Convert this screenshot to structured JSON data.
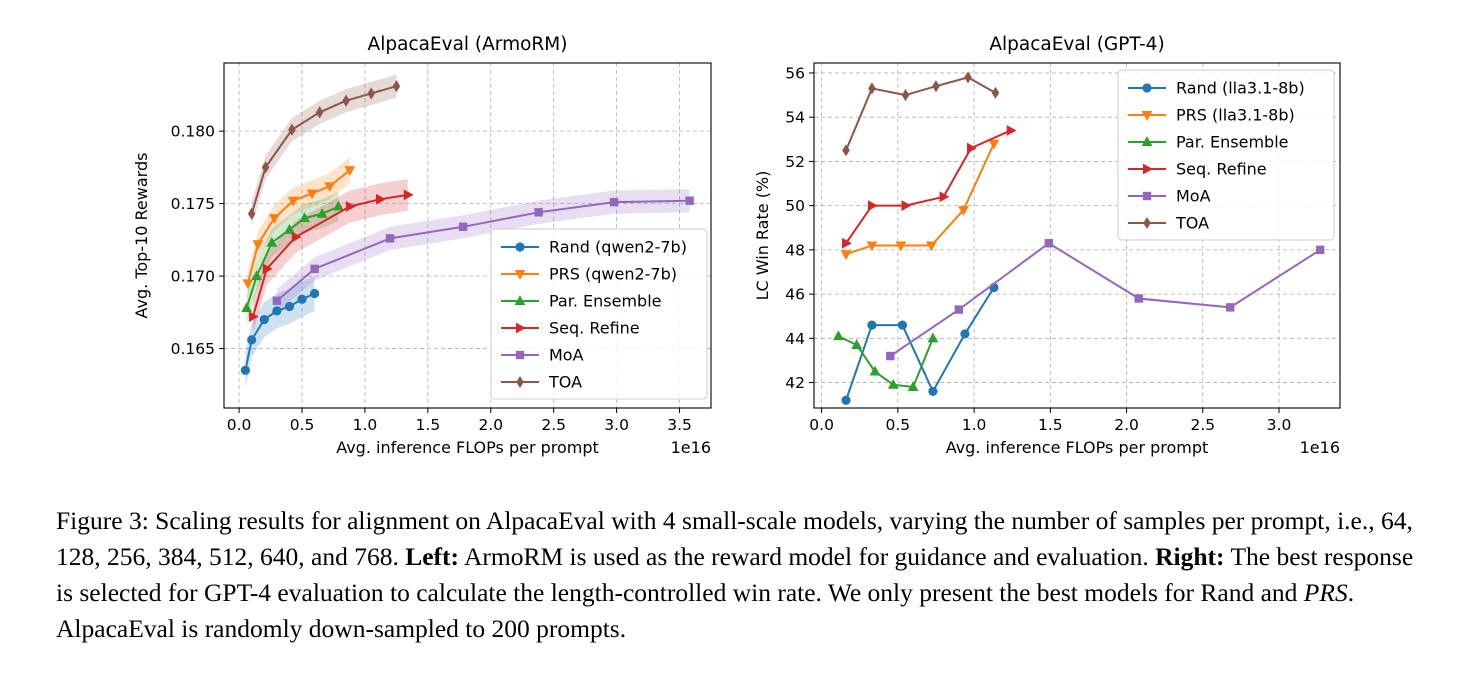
{
  "chart_data": [
    {
      "type": "line",
      "title": "AlpacaEval (ArmoRM)",
      "xlabel": "Avg. inference FLOPs per prompt",
      "ylabel": "Avg. Top-10 Rewards",
      "x_offset_label": "1e16",
      "xlim": [
        -0.12,
        3.75
      ],
      "ylim": [
        0.1609,
        0.1847
      ],
      "xticks": [
        0.0,
        0.5,
        1.0,
        1.5,
        2.0,
        2.5,
        3.0,
        3.5
      ],
      "xtick_labels": [
        "0.0",
        "0.5",
        "1.0",
        "1.5",
        "2.0",
        "2.5",
        "3.0",
        "3.5"
      ],
      "yticks": [
        0.165,
        0.17,
        0.175,
        0.18
      ],
      "ytick_labels": [
        "0.165",
        "0.170",
        "0.175",
        "0.180"
      ],
      "grid": true,
      "legend_position": "lower-right",
      "series": [
        {
          "name": "Rand (qwen2-7b)",
          "color": "#1f77b4",
          "marker": "circle",
          "band": 0.0012,
          "x": [
            0.05,
            0.1,
            0.2,
            0.3,
            0.4,
            0.5,
            0.6
          ],
          "y": [
            0.1635,
            0.1656,
            0.167,
            0.1676,
            0.1679,
            0.1684,
            0.1688
          ]
        },
        {
          "name": "PRS (qwen2-7b)",
          "color": "#ff7f0e",
          "marker": "triangle-down",
          "band": 0.0009,
          "x": [
            0.07,
            0.15,
            0.28,
            0.43,
            0.58,
            0.72,
            0.88
          ],
          "y": [
            0.1695,
            0.1722,
            0.174,
            0.1752,
            0.1757,
            0.1762,
            0.1773
          ]
        },
        {
          "name": "Par. Ensemble",
          "color": "#2ca02c",
          "marker": "triangle-up",
          "band": 0.001,
          "x": [
            0.06,
            0.14,
            0.26,
            0.4,
            0.52,
            0.66,
            0.79
          ],
          "y": [
            0.1678,
            0.17,
            0.1723,
            0.1732,
            0.174,
            0.1743,
            0.1748
          ]
        },
        {
          "name": "Seq. Refine",
          "color": "#d62728",
          "marker": "triangle-right",
          "band": 0.0011,
          "x": [
            0.11,
            0.22,
            0.45,
            0.88,
            1.12,
            1.34
          ],
          "y": [
            0.1672,
            0.1705,
            0.1727,
            0.1748,
            0.1753,
            0.1756
          ]
        },
        {
          "name": "MoA",
          "color": "#9467bd",
          "marker": "square",
          "band": 0.0008,
          "x": [
            0.3,
            0.6,
            1.2,
            1.78,
            2.38,
            2.98,
            3.58
          ],
          "y": [
            0.1683,
            0.1705,
            0.1726,
            0.1734,
            0.1744,
            0.1751,
            0.1752
          ]
        },
        {
          "name": "TOA",
          "color": "#8c564b",
          "marker": "diamond",
          "band": 0.0008,
          "x": [
            0.1,
            0.21,
            0.42,
            0.64,
            0.85,
            1.05,
            1.25
          ],
          "y": [
            0.1743,
            0.1775,
            0.1801,
            0.1813,
            0.1821,
            0.1826,
            0.1831
          ]
        }
      ]
    },
    {
      "type": "line",
      "title": "AlpacaEval (GPT-4)",
      "xlabel": "Avg. inference FLOPs per prompt",
      "ylabel": "LC Win Rate (%)",
      "x_offset_label": "1e16",
      "xlim": [
        -0.05,
        3.4
      ],
      "ylim": [
        40.85,
        56.45
      ],
      "xticks": [
        0.0,
        0.5,
        1.0,
        1.5,
        2.0,
        2.5,
        3.0
      ],
      "xtick_labels": [
        "0.0",
        "0.5",
        "1.0",
        "1.5",
        "2.0",
        "2.5",
        "3.0"
      ],
      "yticks": [
        42,
        44,
        46,
        48,
        50,
        52,
        54,
        56
      ],
      "ytick_labels": [
        "42",
        "44",
        "46",
        "48",
        "50",
        "52",
        "54",
        "56"
      ],
      "grid": true,
      "legend_position": "upper-right",
      "series": [
        {
          "name": "Rand (lla3.1-8b)",
          "color": "#1f77b4",
          "marker": "circle",
          "x": [
            0.16,
            0.33,
            0.53,
            0.73,
            0.94,
            1.13
          ],
          "y": [
            41.2,
            44.6,
            44.6,
            41.6,
            44.2,
            46.3
          ]
        },
        {
          "name": "PRS (lla3.1-8b)",
          "color": "#ff7f0e",
          "marker": "triangle-down",
          "x": [
            0.16,
            0.33,
            0.52,
            0.72,
            0.93,
            1.13
          ],
          "y": [
            47.8,
            48.2,
            48.2,
            48.2,
            49.8,
            52.8
          ]
        },
        {
          "name": "Par. Ensemble",
          "color": "#2ca02c",
          "marker": "triangle-up",
          "x": [
            0.11,
            0.23,
            0.35,
            0.47,
            0.6,
            0.73
          ],
          "y": [
            44.1,
            43.7,
            42.5,
            41.9,
            41.8,
            44.0
          ]
        },
        {
          "name": "Seq. Refine",
          "color": "#d62728",
          "marker": "triangle-right",
          "x": [
            0.16,
            0.33,
            0.55,
            0.8,
            0.98,
            1.24
          ],
          "y": [
            48.3,
            50.0,
            50.0,
            50.4,
            52.6,
            53.4
          ]
        },
        {
          "name": "MoA",
          "color": "#9467bd",
          "marker": "square",
          "x": [
            0.45,
            0.9,
            1.49,
            2.08,
            2.68,
            3.27
          ],
          "y": [
            43.2,
            45.3,
            48.3,
            45.8,
            45.4,
            48.0
          ]
        },
        {
          "name": "TOA",
          "color": "#8c564b",
          "marker": "diamond",
          "x": [
            0.16,
            0.33,
            0.55,
            0.75,
            0.96,
            1.14
          ],
          "y": [
            52.5,
            55.3,
            55.0,
            55.4,
            55.8,
            55.1
          ]
        }
      ]
    }
  ],
  "caption": {
    "part1": "Figure 3: Scaling results for alignment on AlpacaEval with 4 small-scale models, varying the number of samples per prompt, i.e., 64, 128, 256, 384, 512, 640, and 768. ",
    "left_label": "Left:",
    "part2": " ArmoRM is used as the reward model for guidance and evaluation. ",
    "right_label": "Right:",
    "part3": " The best response is selected for GPT-4 evaluation to calculate the length-controlled win rate. We only present the best models for Rand and ",
    "prs": "PRS",
    "part4": ". AlpacaEval is randomly down-sampled to 200 prompts."
  }
}
